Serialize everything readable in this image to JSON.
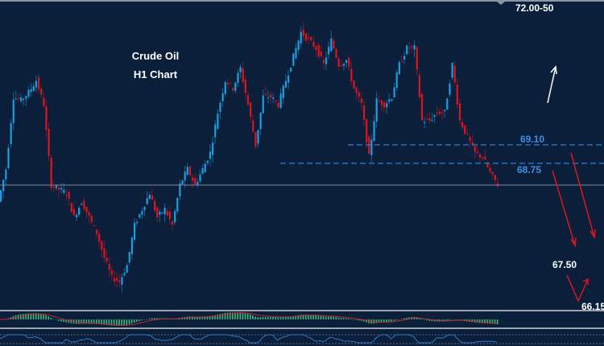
{
  "title": {
    "line1": "Crude Oil",
    "line2": "H1 Chart"
  },
  "annotations": {
    "target_top": "72.00-50",
    "resistance_1": "69.10",
    "resistance_2": "68.75",
    "target_1": "67.50",
    "target_2": "66.15"
  },
  "colors": {
    "background": "#0b1f3b",
    "bull_candle": "#1e9ee0",
    "bear_candle": "#e0141e",
    "level_line": "#2f7fd6",
    "level_label": "#3d8fe8",
    "arrow_down": "#e0141e",
    "arrow_up": "#ffffff",
    "histogram": "#3dbb78",
    "signal_line": "#c0282d",
    "oscillator": "#2f78c8"
  },
  "chart_data": {
    "type": "candlestick",
    "title": "Crude Oil H1 Chart",
    "closes": [
      68.03,
      68.64,
      70.01,
      69.94,
      70.09,
      70.32,
      69.86,
      68.34,
      68.26,
      68.19,
      67.73,
      68.03,
      67.73,
      67.43,
      66.97,
      66.59,
      66.51,
      66.82,
      67.58,
      67.88,
      68.19,
      67.73,
      67.88,
      67.58,
      68.34,
      68.64,
      68.34,
      68.64,
      68.95,
      69.71,
      70.32,
      70.17,
      70.55,
      69.86,
      69.1,
      70.01,
      70.01,
      69.86,
      70.32,
      70.77,
      71.23,
      71.08,
      70.93,
      70.62,
      71.08,
      70.62,
      70.7,
      70.17,
      69.86,
      68.87,
      69.94,
      69.86,
      70.01,
      70.62,
      70.93,
      70.93,
      69.56,
      69.56,
      69.71,
      69.71,
      70.62,
      69.56,
      69.25,
      68.95,
      68.87,
      68.57,
      68.34
    ],
    "levels": [
      69.1,
      68.75
    ],
    "current_price": 68.34,
    "ylim": [
      65.98,
      71.84
    ],
    "grid": false,
    "indicators": [
      "histogram oscillator with signal line",
      "line oscillator"
    ]
  }
}
